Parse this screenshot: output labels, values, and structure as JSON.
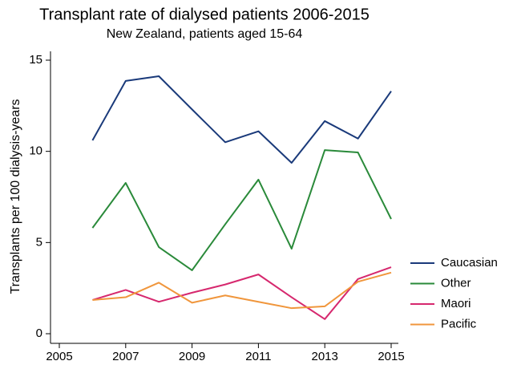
{
  "chart_data": {
    "type": "line",
    "title": "Transplant rate of dialysed patients 2006-2015",
    "subtitle": "New Zealand, patients aged 15-64",
    "y_label": "Transplants per 100 dialysis-years",
    "x": [
      2006,
      2007,
      2008,
      2009,
      2010,
      2011,
      2012,
      2013,
      2014,
      2015
    ],
    "series": [
      {
        "name": "Caucasian",
        "color": "#1a3a7a",
        "values": [
          10.6,
          13.86,
          14.12,
          12.3,
          10.5,
          11.1,
          9.37,
          11.66,
          10.7,
          13.3
        ]
      },
      {
        "name": "Other",
        "color": "#2a8a3a",
        "values": [
          5.8,
          8.27,
          4.75,
          3.48,
          6.0,
          8.45,
          4.66,
          10.07,
          9.94,
          6.29
        ]
      },
      {
        "name": "Maori",
        "color": "#d6286e",
        "values": [
          1.85,
          2.4,
          1.75,
          2.25,
          2.7,
          3.25,
          2.0,
          0.8,
          3.0,
          3.65
        ]
      },
      {
        "name": "Pacific",
        "color": "#f0963c",
        "values": [
          1.85,
          2.0,
          2.8,
          1.7,
          2.1,
          1.75,
          1.4,
          1.5,
          2.85,
          3.35
        ]
      }
    ],
    "xlim": [
      2005,
      2015
    ],
    "xticks": [
      2005,
      2007,
      2009,
      2011,
      2013,
      2015
    ],
    "ylim": [
      0,
      15
    ],
    "yticks": [
      0,
      5,
      10,
      15
    ],
    "grid": false,
    "legend": "right"
  }
}
